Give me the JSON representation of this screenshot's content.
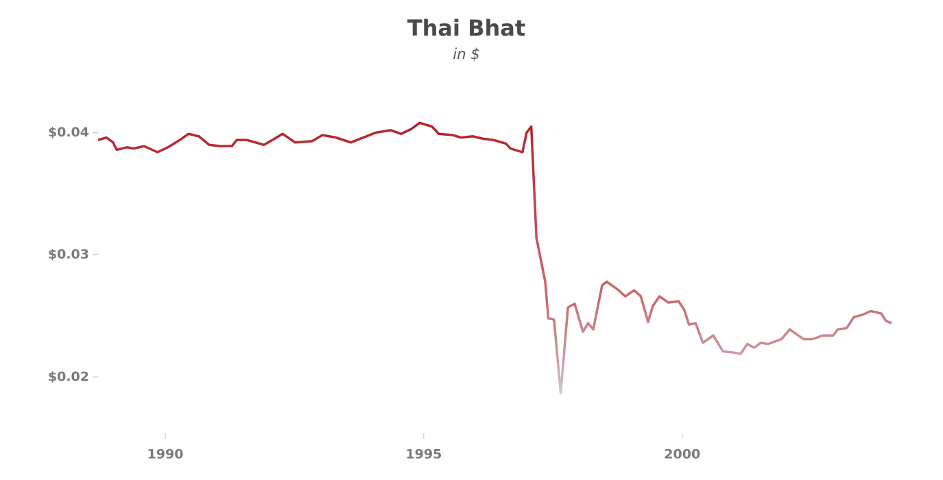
{
  "chart_data": {
    "type": "line",
    "title": "Thai Bhat",
    "subtitle": "in $",
    "x": [
      1988.7,
      1988.86,
      1988.99,
      1989.06,
      1989.26,
      1989.39,
      1989.59,
      1989.85,
      1990.05,
      1990.28,
      1990.45,
      1990.65,
      1990.85,
      1991.05,
      1991.29,
      1991.38,
      1991.58,
      1991.91,
      1992.11,
      1992.27,
      1992.51,
      1992.84,
      1993.04,
      1993.3,
      1993.59,
      1993.83,
      1994.07,
      1994.36,
      1994.56,
      1994.76,
      1994.92,
      1995.16,
      1995.29,
      1995.56,
      1995.72,
      1995.95,
      1996.15,
      1996.35,
      1996.59,
      1996.68,
      1996.91,
      1996.99,
      1997.08,
      1997.18,
      1997.35,
      1997.41,
      1997.52,
      1997.65,
      1997.79,
      1997.92,
      1998.08,
      1998.18,
      1998.28,
      1998.45,
      1998.54,
      1998.74,
      1998.9,
      1999.07,
      1999.2,
      1999.34,
      1999.43,
      1999.56,
      1999.73,
      1999.93,
      2000.04,
      2000.13,
      2000.26,
      2000.4,
      2000.6,
      2000.79,
      2000.99,
      2001.13,
      2001.26,
      2001.39,
      2001.52,
      2001.66,
      2001.92,
      2002.08,
      2002.21,
      2002.35,
      2002.52,
      2002.72,
      2002.92,
      2003.01,
      2003.18,
      2003.32,
      2003.49,
      2003.65,
      2003.85,
      2003.94,
      2004.05
    ],
    "series": [
      {
        "name": "Thai Bhat",
        "color": "#b5202a",
        "color_low": "#cccccc",
        "values": [
          0.0394,
          0.0396,
          0.0392,
          0.0386,
          0.0388,
          0.0387,
          0.0389,
          0.0384,
          0.0388,
          0.0394,
          0.0399,
          0.0397,
          0.039,
          0.0389,
          0.0389,
          0.0394,
          0.0394,
          0.039,
          0.0395,
          0.0399,
          0.0392,
          0.0393,
          0.0398,
          0.0396,
          0.0392,
          0.0396,
          0.04,
          0.0402,
          0.0399,
          0.0403,
          0.0408,
          0.0405,
          0.0399,
          0.0398,
          0.0396,
          0.0397,
          0.0395,
          0.0394,
          0.0391,
          0.0387,
          0.0384,
          0.04,
          0.0405,
          0.0314,
          0.0278,
          0.0248,
          0.0247,
          0.0187,
          0.0257,
          0.026,
          0.0237,
          0.0244,
          0.0239,
          0.0275,
          0.0278,
          0.0272,
          0.0266,
          0.0271,
          0.0266,
          0.0245,
          0.0258,
          0.0266,
          0.0261,
          0.0262,
          0.0255,
          0.0243,
          0.0244,
          0.0228,
          0.0234,
          0.0221,
          0.022,
          0.0219,
          0.0227,
          0.0224,
          0.0228,
          0.0227,
          0.0231,
          0.0239,
          0.0235,
          0.0231,
          0.0231,
          0.0234,
          0.0234,
          0.0239,
          0.024,
          0.0249,
          0.0251,
          0.0254,
          0.0252,
          0.0246,
          0.0244
        ]
      }
    ],
    "xlim": [
      1988.7,
      2004.05
    ],
    "xticks": [
      1990,
      1995,
      2000
    ],
    "ylim": [
      0.0155,
      0.043
    ],
    "yticks": [
      {
        "value": 0.02,
        "label": "$0.02"
      },
      {
        "value": 0.03,
        "label": "$0.03"
      },
      {
        "value": 0.04,
        "label": "$0.04"
      }
    ]
  }
}
